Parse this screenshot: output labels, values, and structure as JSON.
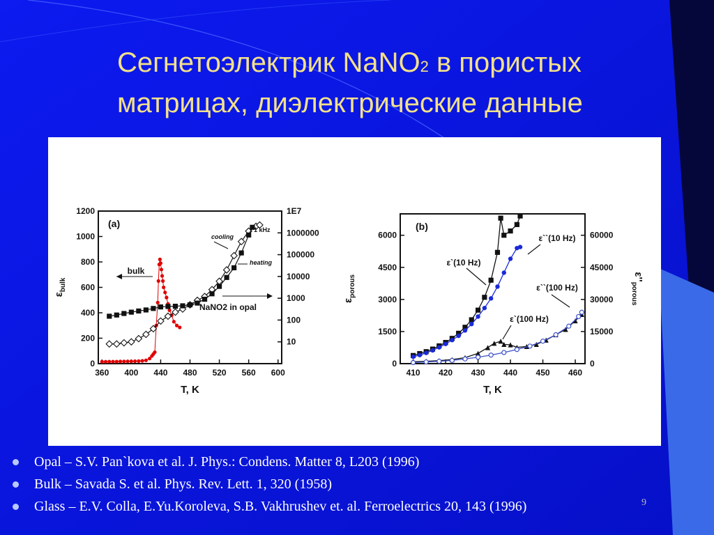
{
  "slide": {
    "title_line1_a": "Сегнетоэлектрик NaNO",
    "title_sub": "2",
    "title_line1_b": " в пористых",
    "title_line2": "матрицах, диэлектрические данные",
    "page_number": "9"
  },
  "references": [
    "Opal – S.V. Pan`kova et al. J. Phys.: Condens. Matter 8, L203 (1996)",
    "Bulk – Savada S. et al. Phys. Rev. Lett. 1, 320 (1958)",
    "Glass – E.V. Colla, E.Yu.Koroleva, S.B. Vakhrushev et. al. Ferroelectrics 20, 143 (1996)"
  ],
  "colors": {
    "background": "#0a14e0",
    "title": "#f2e08a",
    "bulk_series": "#e00000",
    "blue_series": "#1a2ad8"
  },
  "chart_data": [
    {
      "panel_label": "(a)",
      "type": "scatter",
      "xlabel": "T, K",
      "ylabel_left": "ε_bulk",
      "xlim": [
        355,
        605
      ],
      "ylim_left": [
        0,
        1200
      ],
      "ylim_right_log": [
        1,
        10000000
      ],
      "x_ticks": [
        360,
        400,
        440,
        480,
        520,
        560,
        600
      ],
      "y_ticks_left": [
        0,
        200,
        400,
        600,
        800,
        1000,
        1200
      ],
      "y_ticks_right": [
        {
          "value": 10,
          "label": "10"
        },
        {
          "value": 100,
          "label": "100"
        },
        {
          "value": 1000,
          "label": "1000"
        },
        {
          "value": 10000,
          "label": "10000"
        },
        {
          "value": 100000,
          "label": "100000"
        },
        {
          "value": 1000000,
          "label": "1000000"
        },
        {
          "value": 10000000,
          "label": "1E7"
        }
      ],
      "annotations": [
        "cooling",
        "heating",
        "1 kHz",
        "bulk",
        "NaNO2 in opal"
      ],
      "series": [
        {
          "name": "bulk",
          "axis": "left",
          "marker": "dot",
          "color": "#e00000",
          "x": [
            360,
            365,
            370,
            375,
            380,
            385,
            390,
            395,
            400,
            405,
            410,
            415,
            420,
            425,
            428,
            430,
            432,
            434,
            436,
            437,
            438,
            439,
            440,
            441,
            442,
            443,
            444,
            446,
            448,
            450,
            452,
            455,
            458,
            462,
            466
          ],
          "y": [
            15,
            15,
            16,
            16,
            16,
            17,
            17,
            18,
            18,
            19,
            20,
            22,
            26,
            40,
            60,
            75,
            90,
            300,
            480,
            650,
            780,
            820,
            790,
            740,
            690,
            650,
            600,
            560,
            520,
            470,
            420,
            380,
            330,
            300,
            285
          ]
        },
        {
          "name": "cooling",
          "axis": "right_log",
          "marker": "open-diamond",
          "color": "#111111",
          "x": [
            370,
            380,
            390,
            400,
            410,
            420,
            430,
            440,
            450,
            460,
            470,
            480,
            490,
            500,
            510,
            520,
            530,
            540,
            550,
            560,
            570,
            575
          ],
          "y": [
            8,
            8,
            9,
            10,
            14,
            22,
            40,
            90,
            150,
            230,
            320,
            500,
            800,
            1200,
            2500,
            6000,
            20000,
            90000,
            400000,
            1200000,
            2000000,
            2300000
          ]
        },
        {
          "name": "heating",
          "axis": "right_log",
          "marker": "filled-square",
          "color": "#111111",
          "x": [
            370,
            380,
            390,
            400,
            410,
            420,
            430,
            440,
            450,
            460,
            470,
            480,
            490,
            500,
            510,
            520,
            530,
            540,
            550,
            560,
            565
          ],
          "y": [
            150,
            170,
            200,
            230,
            260,
            290,
            340,
            400,
            420,
            430,
            450,
            500,
            600,
            900,
            1600,
            3500,
            9000,
            25000,
            120000,
            800000,
            1800000
          ]
        }
      ]
    },
    {
      "panel_label": "(b)",
      "type": "line",
      "xlabel": "T, K",
      "ylabel_left": "ε_porous",
      "ylabel_right": "ε''_porous",
      "xlim": [
        406,
        463
      ],
      "ylim_left": [
        0,
        7000
      ],
      "ylim_right": [
        0,
        70000
      ],
      "x_ticks": [
        410,
        420,
        430,
        440,
        450,
        460
      ],
      "y_ticks_left": [
        0,
        1500,
        3000,
        4500,
        6000
      ],
      "y_ticks_right": [
        0,
        15000,
        30000,
        45000,
        60000
      ],
      "annotations": [
        "ε`(10 Hz)",
        "ε``(10 Hz)",
        "ε``(100 Hz)",
        "ε`(100 Hz)"
      ],
      "series": [
        {
          "name": "ε`(10 Hz)",
          "axis": "left",
          "marker": "filled-square",
          "color": "#111111",
          "x": [
            410,
            412,
            414,
            416,
            418,
            420,
            422,
            424,
            426,
            428,
            430,
            432,
            434,
            436,
            437,
            438,
            440,
            442,
            443
          ],
          "y": [
            380,
            470,
            560,
            680,
            830,
            990,
            1180,
            1420,
            1700,
            2050,
            2500,
            3100,
            3900,
            5200,
            6800,
            6000,
            6200,
            6500,
            6900
          ]
        },
        {
          "name": "ε``(10 Hz)",
          "axis": "right",
          "marker": "filled-circle",
          "color": "#1a2ad8",
          "x": [
            410,
            412,
            414,
            416,
            418,
            420,
            422,
            424,
            426,
            428,
            430,
            432,
            434,
            436,
            438,
            440,
            442,
            443
          ],
          "y": [
            3200,
            4000,
            5000,
            6200,
            7600,
            9200,
            11000,
            13000,
            15500,
            18500,
            22000,
            26000,
            30500,
            36000,
            42500,
            49000,
            54000,
            54500
          ]
        },
        {
          "name": "ε`(100 Hz)",
          "axis": "left",
          "marker": "filled-triangle",
          "color": "#111111",
          "x": [
            410,
            414,
            418,
            422,
            426,
            430,
            433,
            435,
            437,
            438,
            440,
            442,
            445,
            448,
            451,
            454,
            457,
            460,
            462
          ],
          "y": [
            90,
            110,
            140,
            190,
            280,
            480,
            750,
            950,
            1050,
            900,
            880,
            760,
            800,
            900,
            1100,
            1350,
            1600,
            2000,
            2300
          ]
        },
        {
          "name": "ε``(100 Hz)",
          "axis": "right",
          "marker": "open-circle",
          "color": "#3c50c8",
          "x": [
            410,
            414,
            418,
            422,
            426,
            430,
            434,
            438,
            442,
            446,
            450,
            454,
            458,
            461,
            462
          ],
          "y": [
            500,
            800,
            1100,
            1500,
            2200,
            3000,
            4000,
            5200,
            6600,
            8200,
            10500,
            13500,
            17500,
            22000,
            24000
          ]
        }
      ]
    }
  ]
}
